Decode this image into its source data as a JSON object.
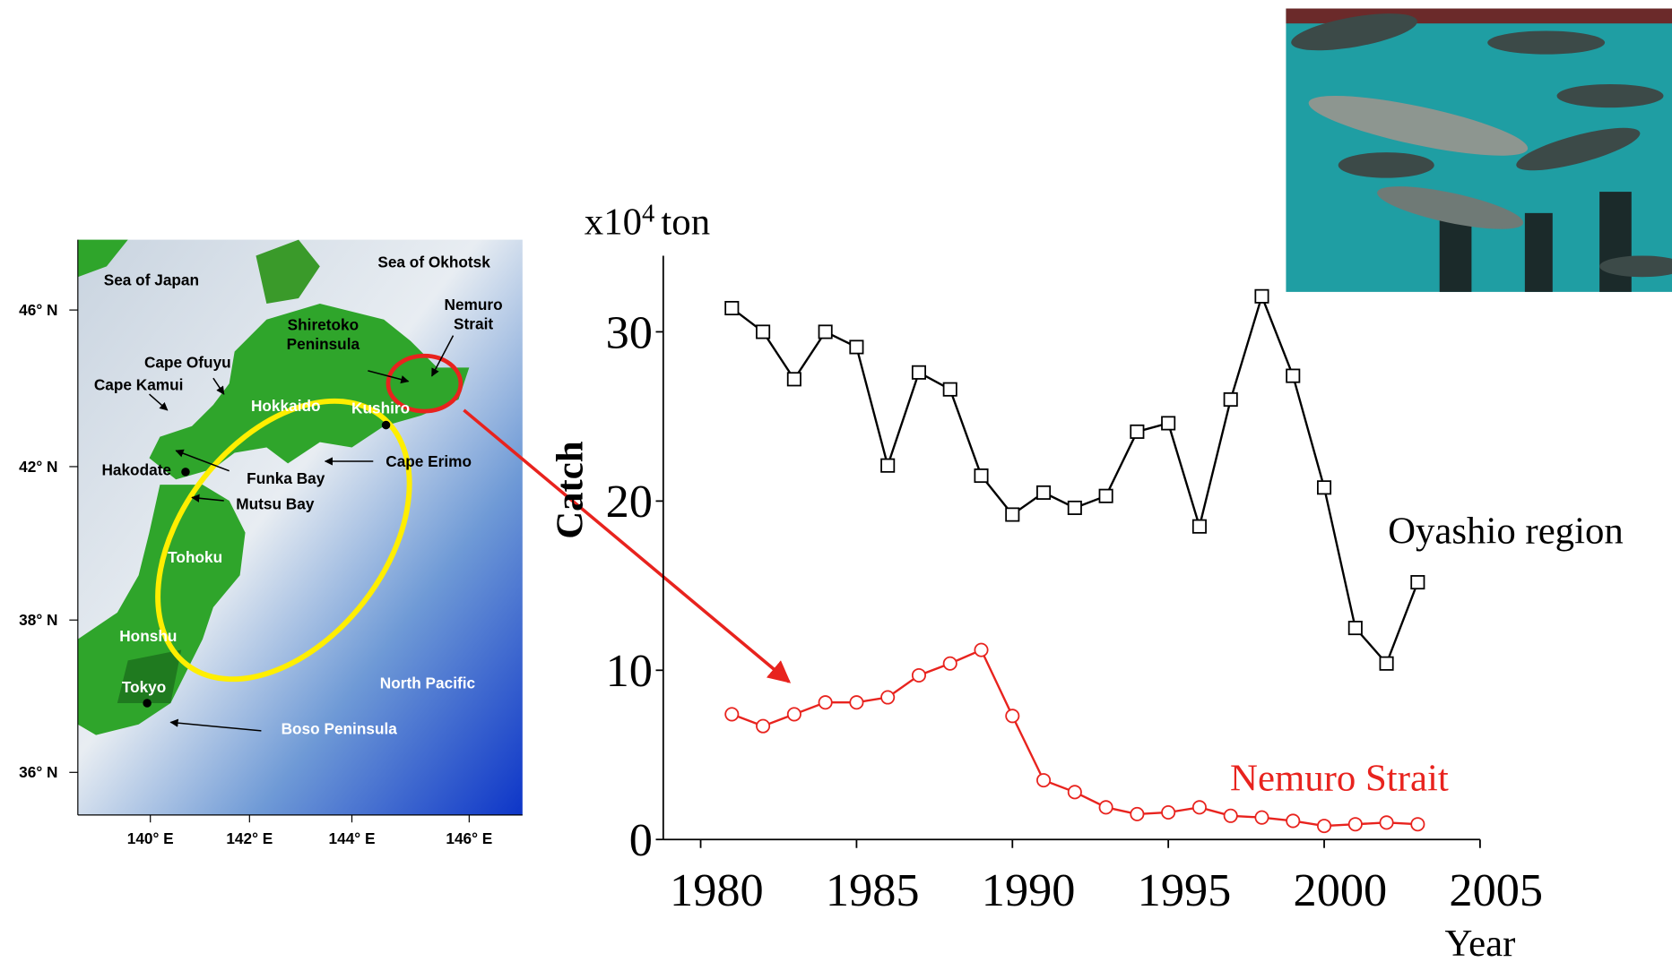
{
  "chart_data": {
    "type": "line",
    "y_unit": {
      "base": "x10",
      "exp": "4",
      "unit": "ton"
    },
    "ylabel": "Catch",
    "xlabel": "Year",
    "x": [
      1981,
      1982,
      1983,
      1984,
      1985,
      1986,
      1987,
      1988,
      1989,
      1990,
      1991,
      1992,
      1993,
      1994,
      1995,
      1996,
      1997,
      1998,
      1999,
      2000,
      2001,
      2002,
      2003
    ],
    "series": [
      {
        "name": "Oyashio region",
        "color": "#000000",
        "marker": "square",
        "values": [
          31.4,
          30.0,
          27.2,
          30.0,
          29.1,
          22.1,
          27.6,
          26.6,
          21.5,
          19.2,
          20.5,
          19.6,
          20.3,
          24.1,
          24.6,
          18.5,
          26.0,
          32.1,
          27.4,
          20.8,
          12.5,
          10.4,
          15.2
        ]
      },
      {
        "name": "Nemuro Strait",
        "color": "#e8231e",
        "marker": "circle",
        "values": [
          7.4,
          6.7,
          7.4,
          8.1,
          8.1,
          8.4,
          9.7,
          10.4,
          11.2,
          7.3,
          3.5,
          2.8,
          1.9,
          1.5,
          1.6,
          1.9,
          1.4,
          1.3,
          1.1,
          0.8,
          0.9,
          1.0,
          0.9
        ]
      }
    ],
    "xlim": [
      1978.8,
      2005
    ],
    "xticks": [
      1980,
      1985,
      1990,
      1995,
      2000,
      2005
    ],
    "ylim": [
      0,
      34.5
    ],
    "yticks": [
      0,
      10,
      20,
      30
    ]
  },
  "map": {
    "lat_labels": [
      "46° N",
      "42° N",
      "38° N",
      "36° N"
    ],
    "lon_labels": [
      "140° E",
      "142° E",
      "144° E",
      "146° E"
    ],
    "labels": [
      {
        "text": [
          "Sea of Japan"
        ]
      },
      {
        "text": [
          "Sea of Okhotsk"
        ]
      },
      {
        "text": [
          "Nemuro",
          "Strait"
        ]
      },
      {
        "text": [
          "Shiretoko",
          "Peninsula"
        ]
      },
      {
        "text": [
          "Cape Ofuyu"
        ]
      },
      {
        "text": [
          "Cape Kamui"
        ]
      },
      {
        "text": [
          "Hokkaido"
        ]
      },
      {
        "text": [
          "Kushiro"
        ]
      },
      {
        "text": [
          "Hakodate"
        ]
      },
      {
        "text": [
          "Funka Bay"
        ]
      },
      {
        "text": [
          "Cape Erimo"
        ]
      },
      {
        "text": [
          "Mutsu Bay"
        ]
      },
      {
        "text": [
          "Tohoku"
        ]
      },
      {
        "text": [
          "Honshu"
        ]
      },
      {
        "text": [
          "Tokyo"
        ]
      },
      {
        "text": [
          "Boso Peninsula"
        ]
      },
      {
        "text": [
          "North Pacific"
        ]
      }
    ]
  }
}
